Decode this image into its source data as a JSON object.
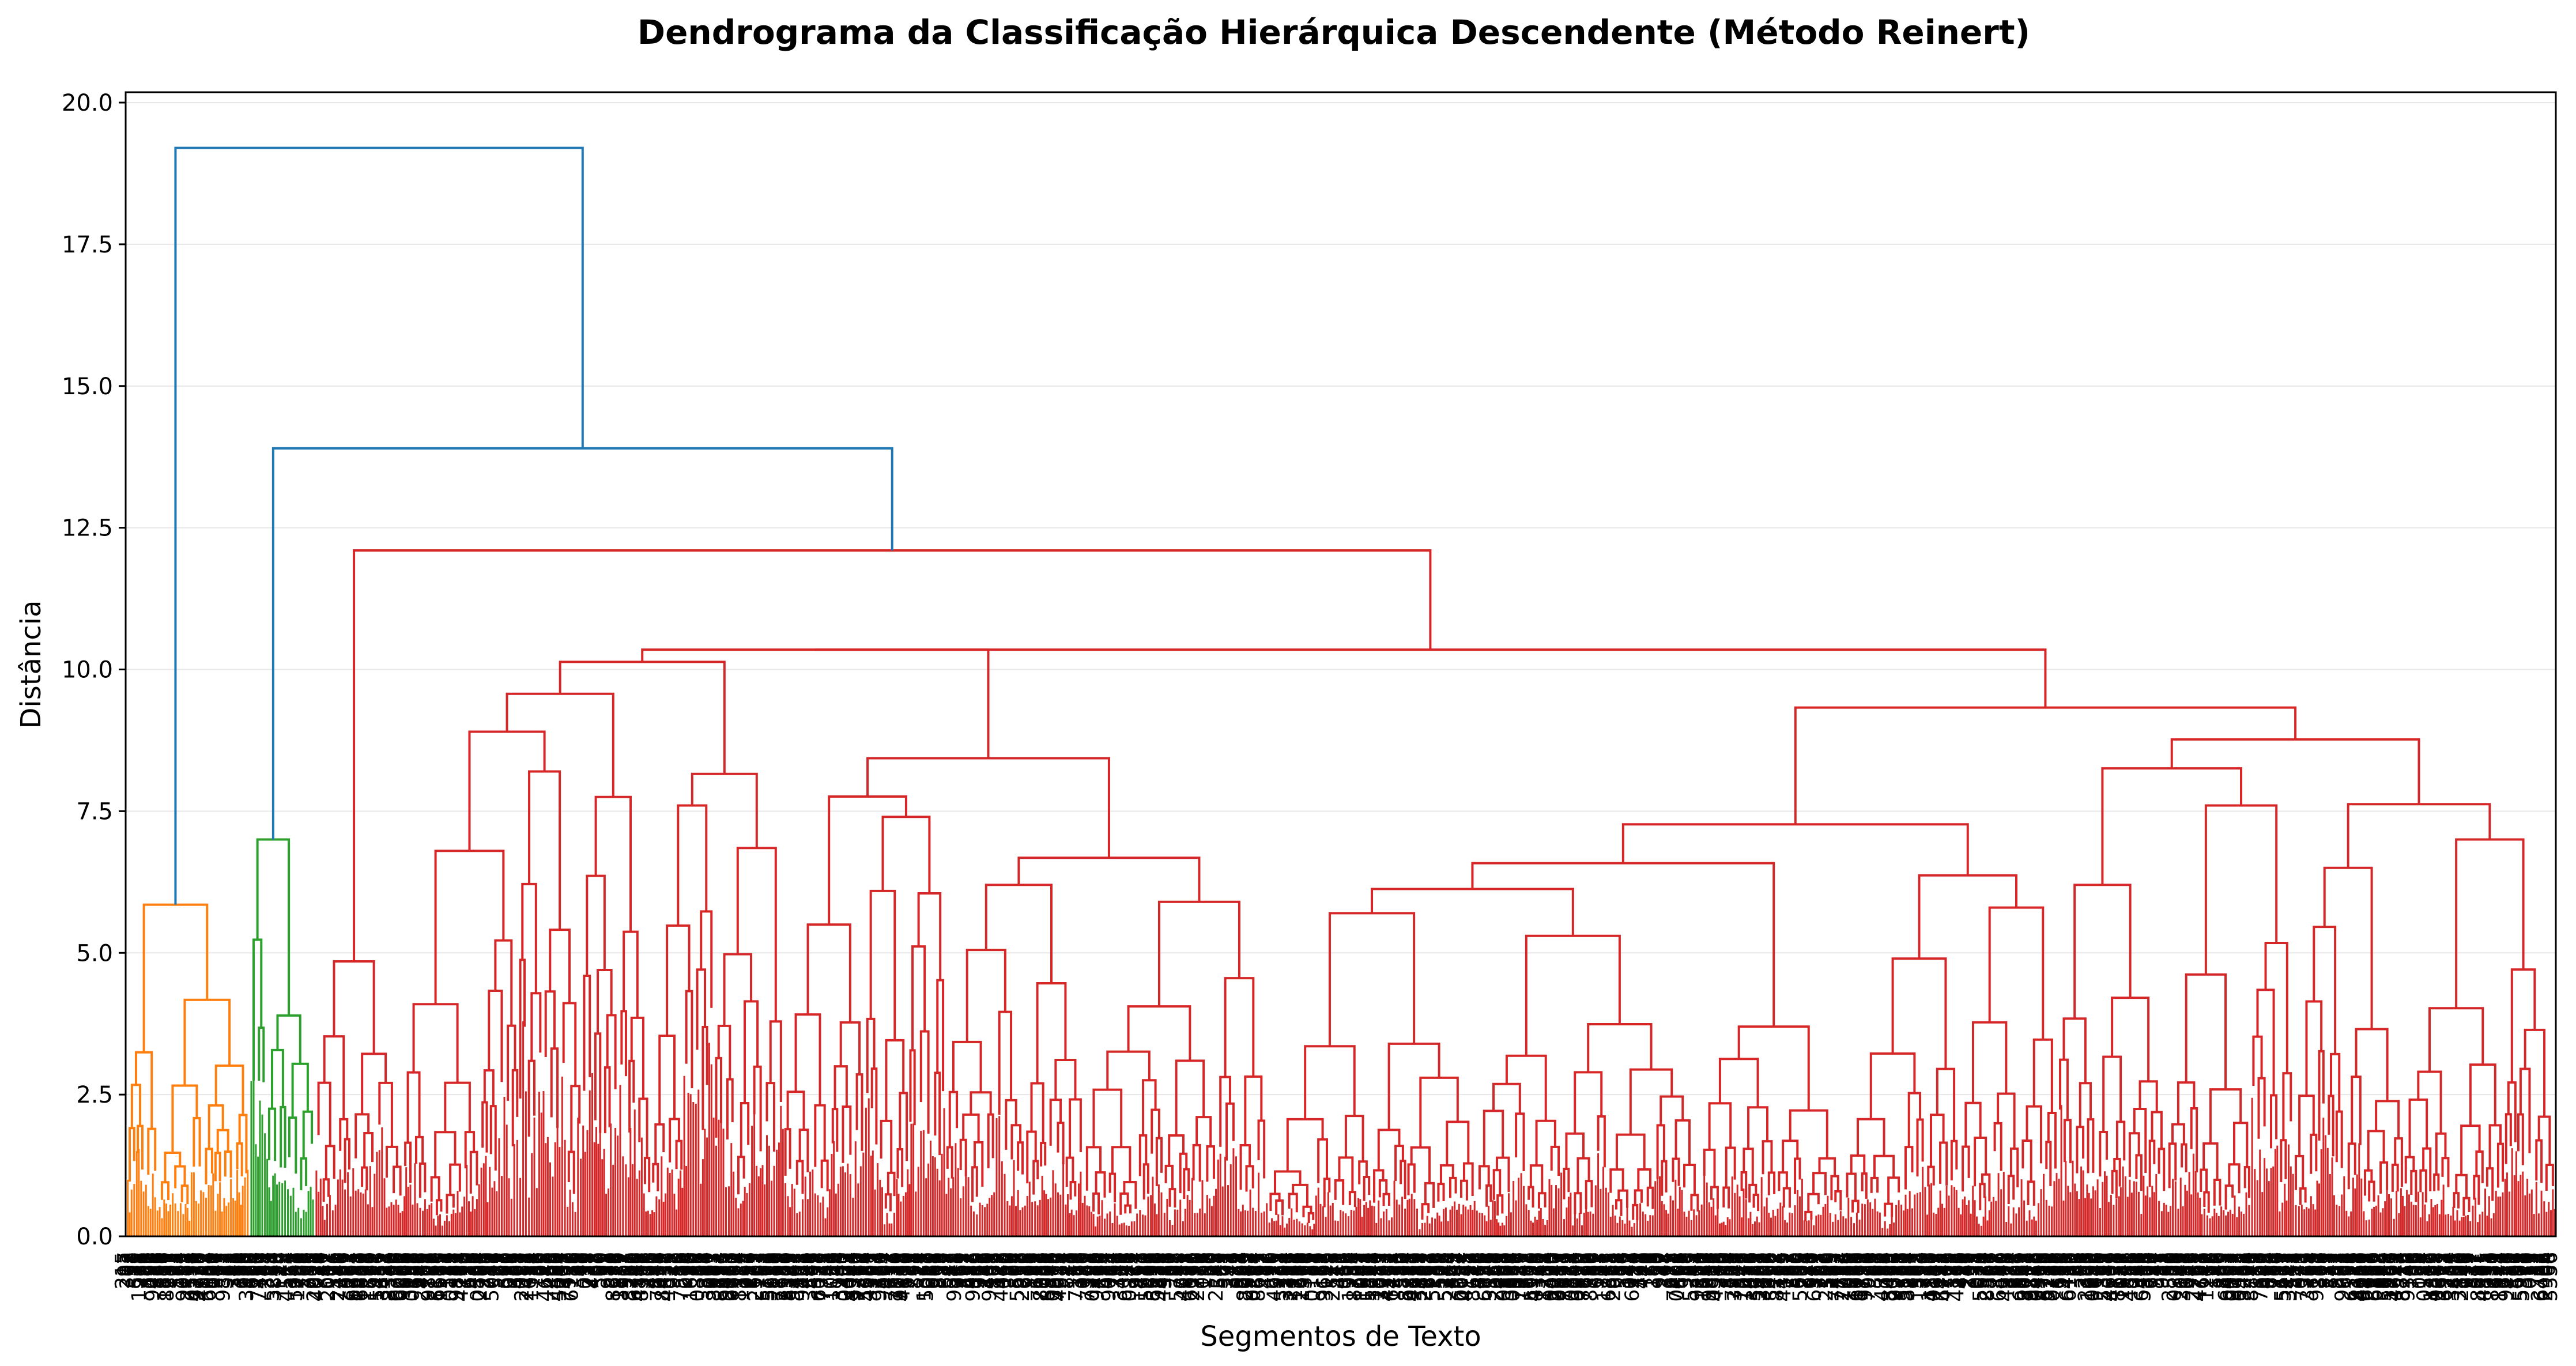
{
  "chart_data": {
    "type": "dendrogram",
    "title": "Dendrograma da Classificação Hierárquica Descendente (Método Reinert)",
    "xlabel": "Segmentos de Texto",
    "ylabel": "Distância",
    "ylim": [
      0,
      20.2
    ],
    "yticks": [
      "0.0",
      "2.5",
      "5.0",
      "7.5",
      "10.0",
      "12.5",
      "15.0",
      "17.5",
      "20.0"
    ],
    "ytick_values": [
      0,
      2.5,
      5.0,
      7.5,
      10.0,
      12.5,
      15.0,
      17.5,
      20.0
    ],
    "grid": "horizontal",
    "colors": {
      "root": "#1f77b4",
      "cluster_orange": "#ff7f0e",
      "cluster_green": "#2ca02c",
      "cluster_red": "#d62728"
    },
    "clusters": [
      {
        "color": "orange",
        "share_of_leaves": 0.05,
        "merge_height": 5.85
      },
      {
        "color": "green",
        "share_of_leaves": 0.026,
        "merge_height": 7.0
      },
      {
        "color": "red",
        "share_of_leaves": 0.924,
        "merge_height": 12.1
      }
    ],
    "upper_merges": [
      {
        "height": 13.9,
        "joins": [
          "green",
          "red"
        ]
      },
      {
        "height": 19.2,
        "joins": [
          "orange",
          "green+red"
        ]
      }
    ],
    "red_internal_merges": [
      10.35,
      9.65,
      9.5,
      9.25,
      8.9,
      8.6,
      8.2,
      8.0,
      7.75,
      7.6,
      6.8,
      6.65,
      6.5,
      5.95,
      5.8,
      5.5,
      5.2,
      4.85,
      4.2,
      3.9
    ]
  }
}
